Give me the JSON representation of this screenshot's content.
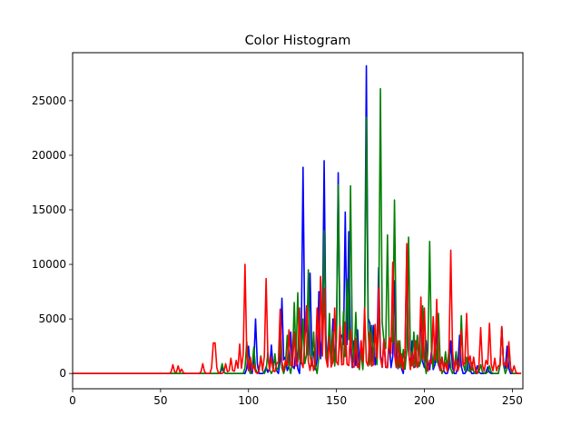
{
  "chart_data": {
    "type": "line",
    "title": "Color Histogram",
    "xlabel": "",
    "ylabel": "",
    "xlim": [
      0,
      256
    ],
    "ylim": [
      -1400,
      29400
    ],
    "x_ticks": [
      0,
      50,
      100,
      150,
      200,
      250
    ],
    "y_ticks": [
      0,
      5000,
      10000,
      15000,
      20000,
      25000
    ],
    "grid": false,
    "legend": "none",
    "series": [
      {
        "color": "#0000ff",
        "peaks": [
          [
            85,
            500
          ],
          [
            100,
            2500
          ],
          [
            104,
            5000
          ],
          [
            110,
            600
          ],
          [
            113,
            2600
          ],
          [
            115,
            1500
          ],
          [
            119,
            6900
          ],
          [
            121,
            1500
          ],
          [
            124,
            3800
          ],
          [
            127,
            2500
          ],
          [
            131,
            18900
          ],
          [
            133,
            4500
          ],
          [
            135,
            9200
          ],
          [
            137,
            2000
          ],
          [
            140,
            7500
          ],
          [
            143,
            19500
          ],
          [
            146,
            4000
          ],
          [
            148,
            5000
          ],
          [
            151,
            18400
          ],
          [
            153,
            3500
          ],
          [
            155,
            14800
          ],
          [
            157,
            13000
          ],
          [
            160,
            3000
          ],
          [
            162,
            4000
          ],
          [
            164,
            3000
          ],
          [
            167,
            28200
          ],
          [
            169,
            4600
          ],
          [
            171,
            4400
          ],
          [
            174,
            9700
          ],
          [
            177,
            3200
          ],
          [
            180,
            3000
          ],
          [
            183,
            8500
          ],
          [
            186,
            2500
          ],
          [
            190,
            11300
          ],
          [
            193,
            3000
          ],
          [
            196,
            3500
          ],
          [
            198,
            6000
          ],
          [
            201,
            3000
          ],
          [
            204,
            2000
          ],
          [
            207,
            4500
          ],
          [
            210,
            1500
          ],
          [
            215,
            3000
          ],
          [
            220,
            3500
          ],
          [
            225,
            1500
          ],
          [
            230,
            700
          ],
          [
            236,
            600
          ],
          [
            244,
            4300
          ],
          [
            247,
            2500
          ]
        ]
      },
      {
        "color": "#008000",
        "peaks": [
          [
            85,
            900
          ],
          [
            99,
            2900
          ],
          [
            103,
            2400
          ],
          [
            107,
            1600
          ],
          [
            111,
            1900
          ],
          [
            115,
            1800
          ],
          [
            118,
            2900
          ],
          [
            122,
            3500
          ],
          [
            126,
            6500
          ],
          [
            128,
            7400
          ],
          [
            131,
            5000
          ],
          [
            134,
            9500
          ],
          [
            137,
            3800
          ],
          [
            141,
            8800
          ],
          [
            143,
            13100
          ],
          [
            146,
            5500
          ],
          [
            148,
            3800
          ],
          [
            151,
            17300
          ],
          [
            154,
            5700
          ],
          [
            156,
            8600
          ],
          [
            158,
            17200
          ],
          [
            161,
            5600
          ],
          [
            164,
            2000
          ],
          [
            167,
            23500
          ],
          [
            170,
            4400
          ],
          [
            172,
            4500
          ],
          [
            175,
            26100
          ],
          [
            177,
            3000
          ],
          [
            179,
            12700
          ],
          [
            181,
            3300
          ],
          [
            183,
            15900
          ],
          [
            186,
            3000
          ],
          [
            188,
            2200
          ],
          [
            191,
            12500
          ],
          [
            194,
            3800
          ],
          [
            196,
            3500
          ],
          [
            199,
            6200
          ],
          [
            203,
            12100
          ],
          [
            206,
            3000
          ],
          [
            208,
            5500
          ],
          [
            212,
            2000
          ],
          [
            214,
            2300
          ],
          [
            218,
            2000
          ],
          [
            221,
            5300
          ],
          [
            224,
            1500
          ],
          [
            227,
            1000
          ],
          [
            232,
            800
          ],
          [
            237,
            700
          ],
          [
            244,
            4200
          ],
          [
            248,
            2400
          ]
        ]
      },
      {
        "color": "#ff0000",
        "peaks": [
          [
            57,
            800
          ],
          [
            60,
            700
          ],
          [
            62,
            400
          ],
          [
            74,
            900
          ],
          [
            80,
            2800
          ],
          [
            81,
            2800
          ],
          [
            87,
            900
          ],
          [
            90,
            1400
          ],
          [
            93,
            1200
          ],
          [
            95,
            2700
          ],
          [
            98,
            10000
          ],
          [
            101,
            1500
          ],
          [
            103,
            800
          ],
          [
            107,
            1500
          ],
          [
            110,
            8700
          ],
          [
            113,
            1500
          ],
          [
            116,
            900
          ],
          [
            118,
            5900
          ],
          [
            121,
            1200
          ],
          [
            123,
            4000
          ],
          [
            126,
            3800
          ],
          [
            129,
            6000
          ],
          [
            132,
            3000
          ],
          [
            133,
            6200
          ],
          [
            136,
            1500
          ],
          [
            139,
            6000
          ],
          [
            141,
            8900
          ],
          [
            143,
            7800
          ],
          [
            146,
            3300
          ],
          [
            149,
            6000
          ],
          [
            152,
            4400
          ],
          [
            155,
            4700
          ],
          [
            158,
            4000
          ],
          [
            161,
            3200
          ],
          [
            164,
            3000
          ],
          [
            166,
            6000
          ],
          [
            169,
            3800
          ],
          [
            172,
            4500
          ],
          [
            174,
            7900
          ],
          [
            177,
            3100
          ],
          [
            180,
            3300
          ],
          [
            182,
            10200
          ],
          [
            185,
            3000
          ],
          [
            187,
            1800
          ],
          [
            190,
            11900
          ],
          [
            193,
            2000
          ],
          [
            195,
            3000
          ],
          [
            198,
            7000
          ],
          [
            200,
            6000
          ],
          [
            203,
            1200
          ],
          [
            205,
            5200
          ],
          [
            207,
            6800
          ],
          [
            210,
            1500
          ],
          [
            212,
            1000
          ],
          [
            215,
            11300
          ],
          [
            218,
            1300
          ],
          [
            221,
            4000
          ],
          [
            224,
            5500
          ],
          [
            226,
            1600
          ],
          [
            228,
            1500
          ],
          [
            232,
            4200
          ],
          [
            235,
            1200
          ],
          [
            237,
            4600
          ],
          [
            240,
            1400
          ],
          [
            242,
            700
          ],
          [
            244,
            4300
          ],
          [
            246,
            1000
          ],
          [
            248,
            2900
          ],
          [
            251,
            700
          ]
        ]
      }
    ]
  }
}
